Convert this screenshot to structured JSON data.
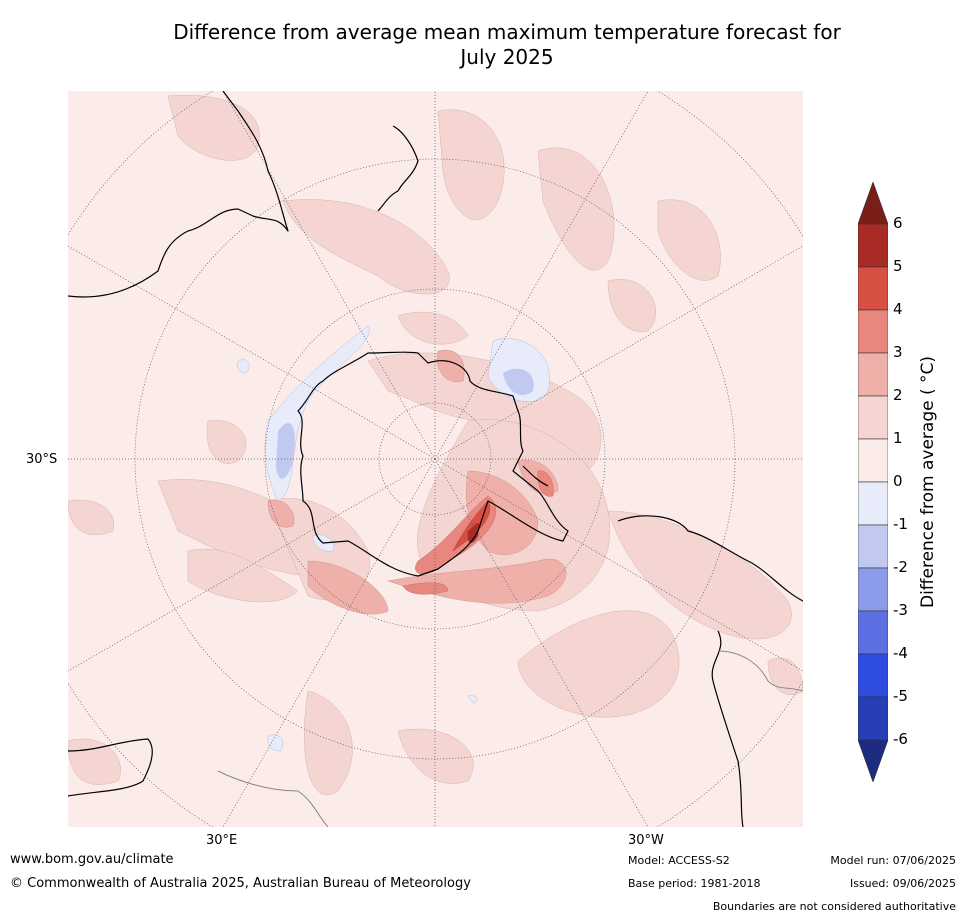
{
  "title_line1": "Difference from average mean maximum temperature forecast for",
  "title_line2": "July 2025",
  "map": {
    "projection": "south-polar-stereographic",
    "lat_label": "30°S",
    "lon_labels": [
      "30°E",
      "30°W"
    ]
  },
  "legend": {
    "label": "Difference from average ( °C)",
    "ticks": [
      "6",
      "5",
      "4",
      "3",
      "2",
      "1",
      "0",
      "-1",
      "-2",
      "-3",
      "-4",
      "-5",
      "-6"
    ],
    "colors": [
      "#7a1e18",
      "#a92b25",
      "#d84f43",
      "#e8877e",
      "#eeb0a9",
      "#f4d5d2",
      "#fbecea",
      "#e7ebfa",
      "#c1c9f1",
      "#8b9bea",
      "#5c70e3",
      "#2e4ce0",
      "#273fb4",
      "#1d2b80"
    ]
  },
  "footer": {
    "website": "www.bom.gov.au/climate",
    "copyright": "© Commonwealth of Australia 2025, Australian Bureau of Meteorology",
    "model": "Model: ACCESS-S2",
    "base_period": "Base period: 1981-2018",
    "model_run": "Model run: 07/06/2025",
    "issued": "Issued: 09/06/2025",
    "disclaimer": "Boundaries are not considered authoritative"
  }
}
